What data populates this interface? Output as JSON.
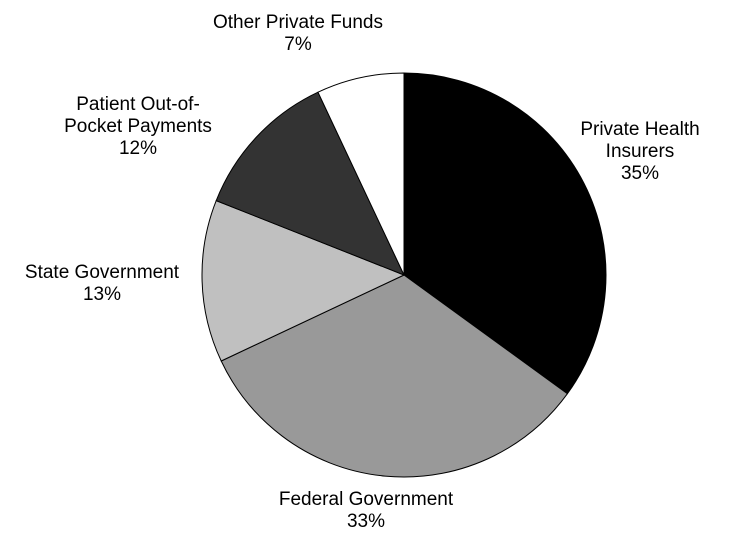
{
  "chart_data": {
    "type": "pie",
    "title": "",
    "slices": [
      {
        "label_lines": [
          "Private Health",
          "Insurers"
        ],
        "value": 35,
        "value_label": "35%",
        "color": "#000000"
      },
      {
        "label_lines": [
          "Federal Government"
        ],
        "value": 33,
        "value_label": "33%",
        "color": "#999999"
      },
      {
        "label_lines": [
          "State Government"
        ],
        "value": 13,
        "value_label": "13%",
        "color": "#c0c0c0"
      },
      {
        "label_lines": [
          "Patient Out-of-",
          "Pocket Payments"
        ],
        "value": 12,
        "value_label": "12%",
        "color": "#333333"
      },
      {
        "label_lines": [
          "Other Private Funds"
        ],
        "value": 7,
        "value_label": "7%",
        "color": "#ffffff"
      }
    ],
    "start_angle": "12 o'clock",
    "direction": "clockwise",
    "slice_outline_color": "#000000",
    "legend": "none"
  }
}
